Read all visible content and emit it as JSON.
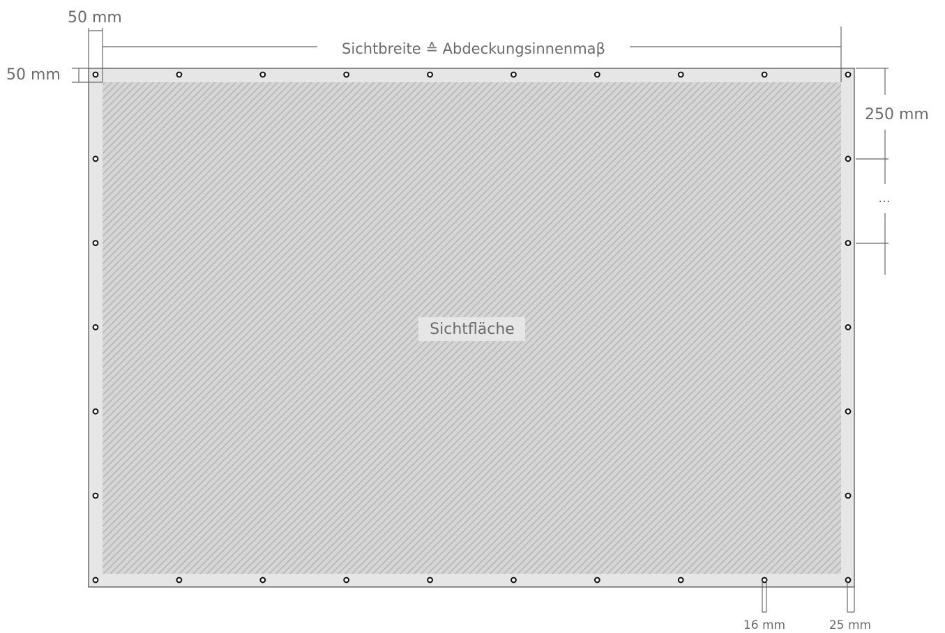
{
  "labels": {
    "top_margin_horizontal": "50 mm",
    "top_margin_vertical": "50 mm",
    "width_caption": "Sichtbreite ≙ Abdeckungsinnenmaβ",
    "center": "Sichtfläche",
    "eyelet_spacing": "250 mm",
    "ellipsis": "...",
    "eyelet_diameter": "16 mm",
    "eyelet_edge_offset": "25 mm"
  },
  "colors": {
    "banner_fill": "#e6e6e6",
    "hatch_stripe": "#b9b9b9",
    "outline": "#555555",
    "text": "#6b6b6b"
  },
  "eyelets": {
    "top_count": 10,
    "bottom_count": 10,
    "left_count": 7,
    "right_count": 7
  }
}
